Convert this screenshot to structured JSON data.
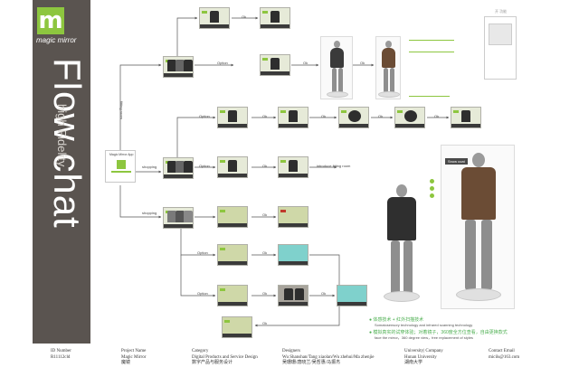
{
  "brand": {
    "logo_letter": "m",
    "name": "magic mirror",
    "title": "Flow chat",
    "subtitle": "high Fidelity"
  },
  "flow": {
    "start_node_label": "Magic Mirror App",
    "branch_left_label": "fitting room",
    "labels": {
      "ok": "Ok",
      "option": "Option",
      "shopping": "shopping",
      "guide_note": "introduce fitting room"
    }
  },
  "features": {
    "line1_cn": "体感技术 + 红外扫描技术",
    "line1_en": "Somatosensory technology and infrared scanning technology",
    "line2_cn": "模拟真实的试穿体验；对着镜子，360度全方位查看，自由更换款式",
    "line2_en": "face the mirror，360 degree view，free replacement of styles"
  },
  "corner_label": "开 功能",
  "mannequin_tag": "Snow coat",
  "footer": {
    "id_number": {
      "label": "ID Number",
      "value": "R11112cld"
    },
    "project": {
      "label": "Project Name",
      "value_en": "Magic Mirror",
      "value_cn": "魔镜"
    },
    "category": {
      "label": "Category",
      "value_en": "Digital Products and Service Design",
      "value_cn": "数字产品与服务设计"
    },
    "designers": {
      "label": "Designers",
      "value_en": "Wu Shanshan/Tang xiaolan/Wu zhehui/Ma zhenjie",
      "value_cn": "吴珊珊/唐晓兰/吴哲惠/马振杰"
    },
    "university": {
      "label": "University| Company",
      "value_en": "Hunan University",
      "value_cn": "湖南大学"
    },
    "contact": {
      "label": "Contact Email",
      "value": "micils@163.com"
    }
  },
  "colors": {
    "panel": "#5a5450",
    "accent": "#8dc63f",
    "arrow": "#555555"
  }
}
